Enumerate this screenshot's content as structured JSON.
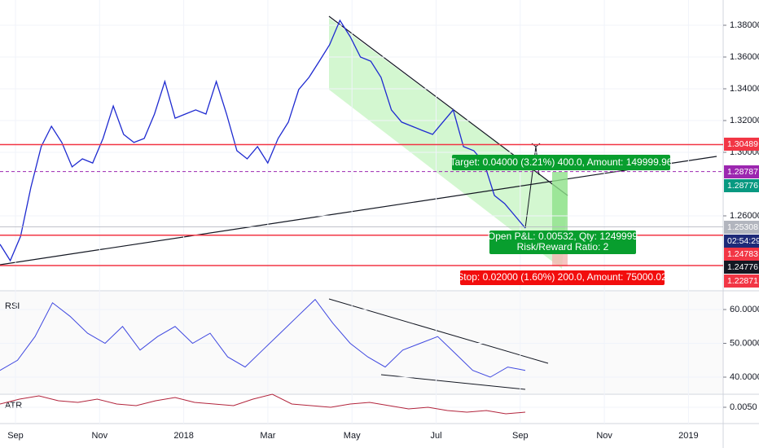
{
  "price_pane": {
    "ticks": [
      {
        "value": 1.38,
        "label": "1.38000"
      },
      {
        "value": 1.36,
        "label": "1.36000"
      },
      {
        "value": 1.34,
        "label": "1.34000"
      },
      {
        "value": 1.32,
        "label": "1.32000"
      },
      {
        "value": 1.3,
        "label": "1.30000"
      },
      {
        "value": 1.26,
        "label": "1.26000"
      }
    ],
    "levels": [
      {
        "label": "1.30489",
        "color": "#f23645"
      },
      {
        "label": "1.28787",
        "color": "#9c27b0"
      },
      {
        "label": "1.28776",
        "color": "#089981"
      },
      {
        "label": "1.25308",
        "color": "#b2b5be"
      },
      {
        "label": "02:54:29",
        "color": "#1e2a78"
      },
      {
        "label": "1.24783",
        "color": "#f23645"
      },
      {
        "label": "1.24776",
        "color": "#131722"
      },
      {
        "label": "1.22871",
        "color": "#f23645"
      }
    ],
    "series": [
      1.2421,
      1.2318,
      1.2472,
      1.2779,
      1.3036,
      1.3164,
      1.3062,
      1.2908,
      1.2959,
      1.2933,
      1.3087,
      1.3292,
      1.3113,
      1.3062,
      1.3087,
      1.3241,
      1.3446,
      1.3215,
      1.3241,
      1.3267,
      1.3241,
      1.3446,
      1.3241,
      1.301,
      1.2959,
      1.3036,
      1.2933,
      1.3087,
      1.319,
      1.3395,
      1.3472,
      1.3574,
      1.3677,
      1.3831,
      1.3728,
      1.36,
      1.3574,
      1.3472,
      1.3267,
      1.319,
      1.3164,
      1.3138,
      1.3113,
      1.319,
      1.3267,
      1.3036,
      1.301,
      1.2933,
      1.2728,
      1.2677,
      1.26,
      1.2523
    ]
  },
  "annotations": {
    "target": "Target: 0.04000 (3.21%) 400.0, Amount: 149999.96",
    "pnl": "Open P&L: 0.00532, Qty: 1249999",
    "ratio": "Risk/Reward Ratio: 2",
    "stop": "Stop: 0.02000 (1.60%) 200.0, Amount: 75000.02"
  },
  "rsi_pane": {
    "title": "RSI",
    "ticks": [
      {
        "value": 60,
        "label": "60.0000"
      },
      {
        "value": 50,
        "label": "50.0000"
      },
      {
        "value": 40,
        "label": "40.0000"
      }
    ],
    "series": [
      42,
      45,
      52,
      62,
      58,
      53,
      50,
      55,
      48,
      52,
      55,
      50,
      53,
      46,
      43,
      48,
      53,
      58,
      63,
      56,
      50,
      46,
      43,
      48,
      50,
      52,
      47,
      42,
      40,
      43,
      42
    ]
  },
  "atr_pane": {
    "title": "ATR",
    "ticks": [
      {
        "value": 0.005,
        "label": "0.0050"
      }
    ],
    "series": [
      0.0052,
      0.0055,
      0.0057,
      0.0054,
      0.0053,
      0.0055,
      0.0052,
      0.0051,
      0.0054,
      0.0056,
      0.0053,
      0.0052,
      0.0051,
      0.0055,
      0.0058,
      0.0052,
      0.0051,
      0.005,
      0.0052,
      0.0053,
      0.0051,
      0.0049,
      0.005,
      0.0048,
      0.0047,
      0.0048,
      0.0046,
      0.0047
    ]
  },
  "time_axis": [
    "Sep",
    "Nov",
    "2018",
    "Mar",
    "May",
    "Jul",
    "Sep",
    "Nov",
    "2019"
  ]
}
